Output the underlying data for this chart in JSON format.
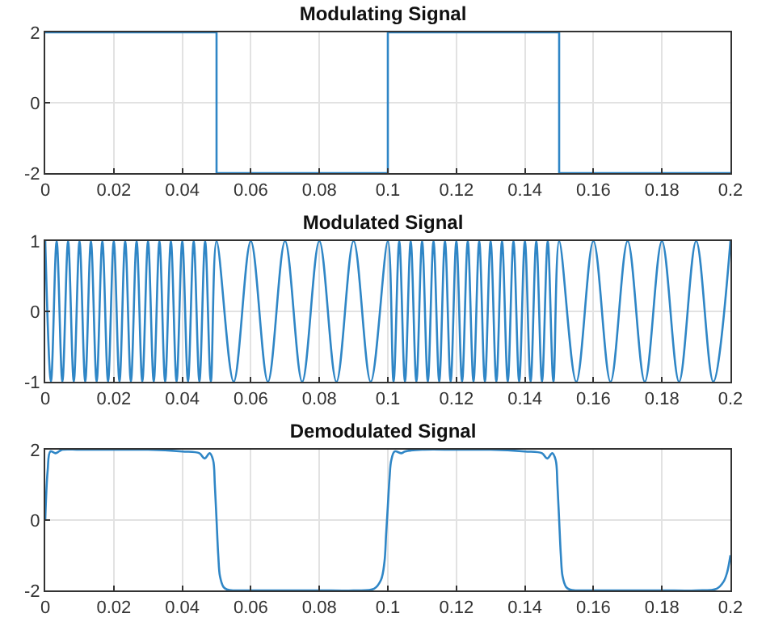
{
  "chart_data": [
    {
      "type": "step",
      "title": "Modulating Signal",
      "color": "#2f86c6",
      "x": [
        0,
        0.05,
        0.1,
        0.15,
        0.2
      ],
      "values": [
        2,
        -2,
        2,
        -2,
        -2
      ],
      "xlim": [
        0,
        0.2
      ],
      "ylim": [
        -2,
        2
      ],
      "xticks": [
        0,
        0.02,
        0.04,
        0.06,
        0.08,
        0.1,
        0.12,
        0.14,
        0.16,
        0.18,
        0.2
      ],
      "yticks": [
        -2,
        0,
        2
      ],
      "grid": true
    },
    {
      "type": "line",
      "title": "Modulated Signal",
      "color": "#2f86c6",
      "x": [
        0,
        0.00167,
        0.00333,
        0.005,
        0.00667,
        0.00833,
        0.01,
        0.01167,
        0.01333,
        0.015,
        0.01667,
        0.01833,
        0.02,
        0.02167,
        0.02333,
        0.025,
        0.02667,
        0.02833,
        0.03,
        0.03167,
        0.03333,
        0.035,
        0.03667,
        0.03833,
        0.04,
        0.04167,
        0.04333,
        0.045,
        0.04667,
        0.04833,
        0.05,
        0.055,
        0.06,
        0.065,
        0.07,
        0.075,
        0.08,
        0.085,
        0.09,
        0.095,
        0.1,
        0.10167,
        0.10333,
        0.105,
        0.10667,
        0.10833,
        0.11,
        0.11167,
        0.11333,
        0.115,
        0.11667,
        0.11833,
        0.12,
        0.12167,
        0.12333,
        0.125,
        0.12667,
        0.12833,
        0.13,
        0.13167,
        0.13333,
        0.135,
        0.13667,
        0.13833,
        0.14,
        0.14167,
        0.14333,
        0.145,
        0.14667,
        0.14833,
        0.15,
        0.155,
        0.16,
        0.165,
        0.17,
        0.175,
        0.18,
        0.185,
        0.19,
        0.195,
        0.2
      ],
      "values": [
        1,
        -1,
        1,
        -1,
        1,
        -1,
        1,
        -1,
        1,
        -1,
        1,
        -1,
        1,
        -1,
        1,
        -1,
        1,
        -1,
        1,
        -1,
        1,
        -1,
        1,
        -1,
        1,
        -1,
        1,
        -1,
        1,
        -1,
        1,
        -1,
        1,
        -1,
        1,
        -1,
        1,
        -1,
        1,
        -1,
        1,
        -1,
        1,
        -1,
        1,
        -1,
        1,
        -1,
        1,
        -1,
        1,
        -1,
        1,
        -1,
        1,
        -1,
        1,
        -1,
        1,
        -1,
        1,
        -1,
        1,
        -1,
        1,
        -1,
        1,
        -1,
        1,
        -1,
        1,
        -1,
        1,
        -1,
        1,
        -1,
        1,
        -1,
        1,
        -1,
        1
      ],
      "xlim": [
        0,
        0.2
      ],
      "ylim": [
        -1,
        1
      ],
      "xticks": [
        0,
        0.02,
        0.04,
        0.06,
        0.08,
        0.1,
        0.12,
        0.14,
        0.16,
        0.18,
        0.2
      ],
      "yticks": [
        -1,
        0,
        1
      ],
      "grid": true
    },
    {
      "type": "line",
      "title": "Demodulated Signal",
      "color": "#2f86c6",
      "x": [
        0,
        0.0007,
        0.0015,
        0.003,
        0.004,
        0.005,
        0.01,
        0.02,
        0.03,
        0.04,
        0.045,
        0.0465,
        0.048,
        0.049,
        0.0495,
        0.05,
        0.0505,
        0.051,
        0.052,
        0.053,
        0.055,
        0.06,
        0.07,
        0.08,
        0.09,
        0.096,
        0.098,
        0.099,
        0.0995,
        0.1,
        0.1005,
        0.101,
        0.102,
        0.104,
        0.105,
        0.11,
        0.12,
        0.13,
        0.14,
        0.145,
        0.1465,
        0.148,
        0.149,
        0.1495,
        0.15,
        0.1505,
        0.151,
        0.152,
        0.153,
        0.155,
        0.16,
        0.17,
        0.18,
        0.19,
        0.196,
        0.198,
        0.199,
        0.2
      ],
      "values": [
        0,
        1.4,
        1.95,
        1.9,
        1.95,
        2,
        2,
        2,
        2,
        1.95,
        1.9,
        1.75,
        1.9,
        1.7,
        1,
        0,
        -1,
        -1.6,
        -1.9,
        -1.97,
        -2,
        -2,
        -2,
        -2,
        -2,
        -1.95,
        -1.7,
        -1.2,
        -0.4,
        0.4,
        1.2,
        1.7,
        1.95,
        1.9,
        1.95,
        2,
        2,
        2,
        1.95,
        1.9,
        1.75,
        1.9,
        1.7,
        1,
        0,
        -1,
        -1.6,
        -1.9,
        -1.97,
        -2,
        -2,
        -2,
        -2,
        -2,
        -1.95,
        -1.75,
        -1.5,
        -1
      ],
      "xlim": [
        0,
        0.2
      ],
      "ylim": [
        -2,
        2
      ],
      "xticks": [
        0,
        0.02,
        0.04,
        0.06,
        0.08,
        0.1,
        0.12,
        0.14,
        0.16,
        0.18,
        0.2
      ],
      "yticks": [
        -2,
        0,
        2
      ],
      "grid": true
    }
  ]
}
